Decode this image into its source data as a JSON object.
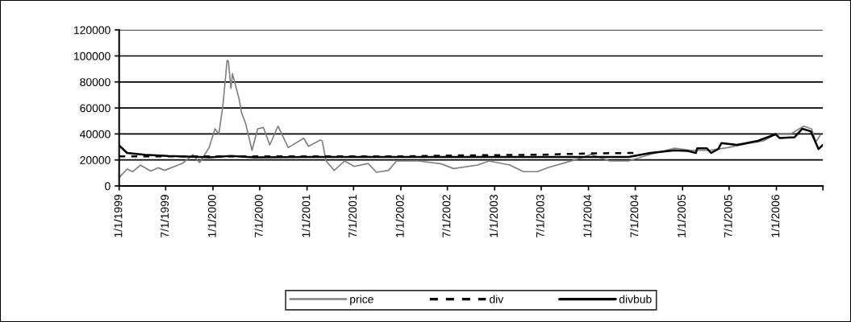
{
  "chart_data": {
    "type": "line",
    "xlim": [
      "1999-01-01",
      "2006-07-01"
    ],
    "xticks": [
      {
        "value": "1999-01-01",
        "label": "1/1/1999"
      },
      {
        "value": "1999-07-01",
        "label": "7/1/1999"
      },
      {
        "value": "2000-01-01",
        "label": "1/1/2000"
      },
      {
        "value": "2000-07-01",
        "label": "7/1/2000"
      },
      {
        "value": "2001-01-01",
        "label": "1/1/2001"
      },
      {
        "value": "2001-07-01",
        "label": "7/1/2001"
      },
      {
        "value": "2002-01-01",
        "label": "1/1/2002"
      },
      {
        "value": "2002-07-01",
        "label": "7/1/2002"
      },
      {
        "value": "2003-01-01",
        "label": "1/1/2003"
      },
      {
        "value": "2003-07-01",
        "label": "7/1/2003"
      },
      {
        "value": "2004-01-01",
        "label": "1/1/2004"
      },
      {
        "value": "2004-07-01",
        "label": "7/1/2004"
      },
      {
        "value": "2005-01-01",
        "label": "1/1/2005"
      },
      {
        "value": "2005-07-01",
        "label": "7/1/2005"
      },
      {
        "value": "2006-01-01",
        "label": "1/1/2006"
      },
      {
        "value": "2006-07-01",
        "label": null
      }
    ],
    "ylim": [
      0,
      120000
    ],
    "yticks": [
      0,
      20000,
      40000,
      60000,
      80000,
      100000,
      120000
    ],
    "grid": "y",
    "legend": "bottom",
    "marker": "none",
    "series": [
      {
        "name": "price",
        "color": "#808080",
        "line_style": "solid",
        "x": [
          "1999-01-01",
          "1999-02-01",
          "1999-02-23",
          "1999-03-25",
          "1999-05-04",
          "1999-06-02",
          "1999-06-27",
          "1999-09-05",
          "1999-10-15",
          "1999-11-10",
          "1999-12-17",
          "2000-01-09",
          "2000-01-24",
          "2000-02-09",
          "2000-02-25",
          "2000-03-01",
          "2000-03-11",
          "2000-03-17",
          "2000-04-12",
          "2000-04-21",
          "2000-05-07",
          "2000-06-01",
          "2000-06-23",
          "2000-07-15",
          "2000-08-09",
          "2000-09-10",
          "2000-10-20",
          "2000-12-19",
          "2001-01-07",
          "2001-02-21",
          "2001-03-01",
          "2001-03-16",
          "2001-04-17",
          "2001-05-27",
          "2001-07-04",
          "2001-08-27",
          "2001-09-28",
          "2001-11-14",
          "2001-12-15",
          "2002-03-11",
          "2002-06-05",
          "2002-07-25",
          "2002-10-27",
          "2002-12-10",
          "2003-03-01",
          "2003-04-23",
          "2003-06-16",
          "2003-07-27",
          "2003-10-07",
          "2003-11-30",
          "2004-01-10",
          "2004-03-24",
          "2004-06-05",
          "2004-08-29",
          "2004-12-01",
          "2005-02-03",
          "2005-04-14",
          "2005-06-26",
          "2005-09-10",
          "2005-11-12",
          "2005-12-29",
          "2006-02-24",
          "2006-04-17",
          "2006-05-18",
          "2006-06-03",
          "2006-06-22"
        ],
        "values": [
          6400,
          13000,
          11000,
          16000,
          11500,
          14000,
          12000,
          17500,
          24000,
          18000,
          29500,
          44000,
          40000,
          62500,
          96600,
          96000,
          75000,
          86300,
          66700,
          56400,
          48100,
          27400,
          44000,
          45000,
          31600,
          46000,
          29500,
          36700,
          30500,
          35300,
          34700,
          19200,
          12000,
          19200,
          15000,
          17300,
          10500,
          12000,
          19200,
          19200,
          17100,
          13400,
          16100,
          19200,
          16100,
          11000,
          11000,
          14100,
          18200,
          21300,
          24300,
          19200,
          19200,
          24300,
          29100,
          27400,
          27400,
          29500,
          32600,
          34700,
          39800,
          39800,
          46000,
          44000,
          33700,
          39500
        ]
      },
      {
        "name": "div",
        "color": "#000000",
        "line_style": "dashed",
        "x": [
          "1999-01-01",
          "2000-01-01",
          "2001-01-01",
          "2002-01-01",
          "2002-07-01",
          "2003-07-01",
          "2004-01-01",
          "2004-07-01"
        ],
        "values": [
          22700,
          22700,
          22700,
          22700,
          23400,
          24000,
          25000,
          25400
        ]
      },
      {
        "name": "divbub",
        "color": "#000000",
        "line_style": "solid",
        "x": [
          "1999-01-01",
          "1999-02-01",
          "1999-04-10",
          "1999-07-11",
          "1999-12-17",
          "2000-03-11",
          "2000-06-12",
          "2001-01-01",
          "2002-01-01",
          "2003-01-01",
          "2004-01-01",
          "2004-06-05",
          "2004-08-29",
          "2004-12-01",
          "2005-01-19",
          "2005-02-22",
          "2005-02-27",
          "2005-04-05",
          "2005-04-22",
          "2005-05-20",
          "2005-06-01",
          "2005-08-01",
          "2005-10-21",
          "2005-12-29",
          "2006-01-14",
          "2006-03-12",
          "2006-04-12",
          "2006-05-15",
          "2006-06-14",
          "2006-07-01"
        ],
        "values": [
          31200,
          25400,
          24000,
          23000,
          22000,
          23000,
          22000,
          22300,
          22300,
          22300,
          22300,
          22300,
          25400,
          27400,
          27000,
          25400,
          29000,
          29000,
          25400,
          28400,
          33000,
          31600,
          34700,
          39800,
          36800,
          37400,
          44000,
          42000,
          28400,
          31600
        ]
      }
    ]
  }
}
